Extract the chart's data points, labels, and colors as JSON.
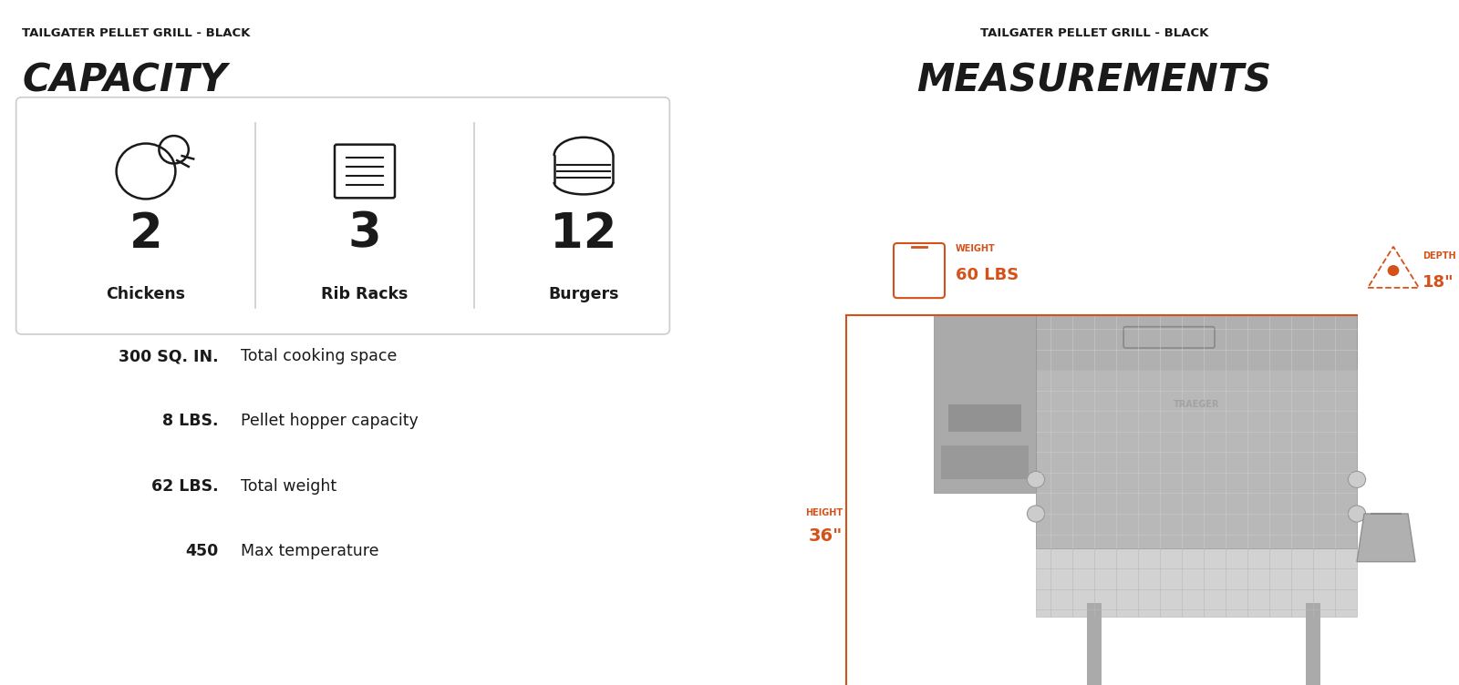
{
  "bg_color": "#ffffff",
  "left_title_sub": "TAILGATER PELLET GRILL - BLACK",
  "left_title_main": "CAPACITY",
  "right_title_sub": "TAILGATER PELLET GRILL - BLACK",
  "right_title_main": "MEASUREMENTS",
  "capacity_items": [
    {
      "number": "2",
      "label": "Chickens"
    },
    {
      "number": "3",
      "label": "Rib Racks"
    },
    {
      "number": "12",
      "label": "Burgers"
    }
  ],
  "specs": [
    {
      "value": "300 SQ. IN.",
      "desc": "Total cooking space"
    },
    {
      "value": "8 LBS.",
      "desc": "Pellet hopper capacity"
    },
    {
      "value": "62 LBS.",
      "desc": "Total weight"
    },
    {
      "value": "450",
      "desc": "Max temperature"
    }
  ],
  "orange_color": "#D4521A",
  "dark_color": "#1a1a1a",
  "mid_gray": "#888888",
  "light_gray": "#c8c8c8",
  "box_border": "#cccccc",
  "grill_body_color": "#b8b8b8",
  "grill_grid_color": "#d5d5d5",
  "grill_dark": "#909090",
  "grill_darker": "#787878"
}
